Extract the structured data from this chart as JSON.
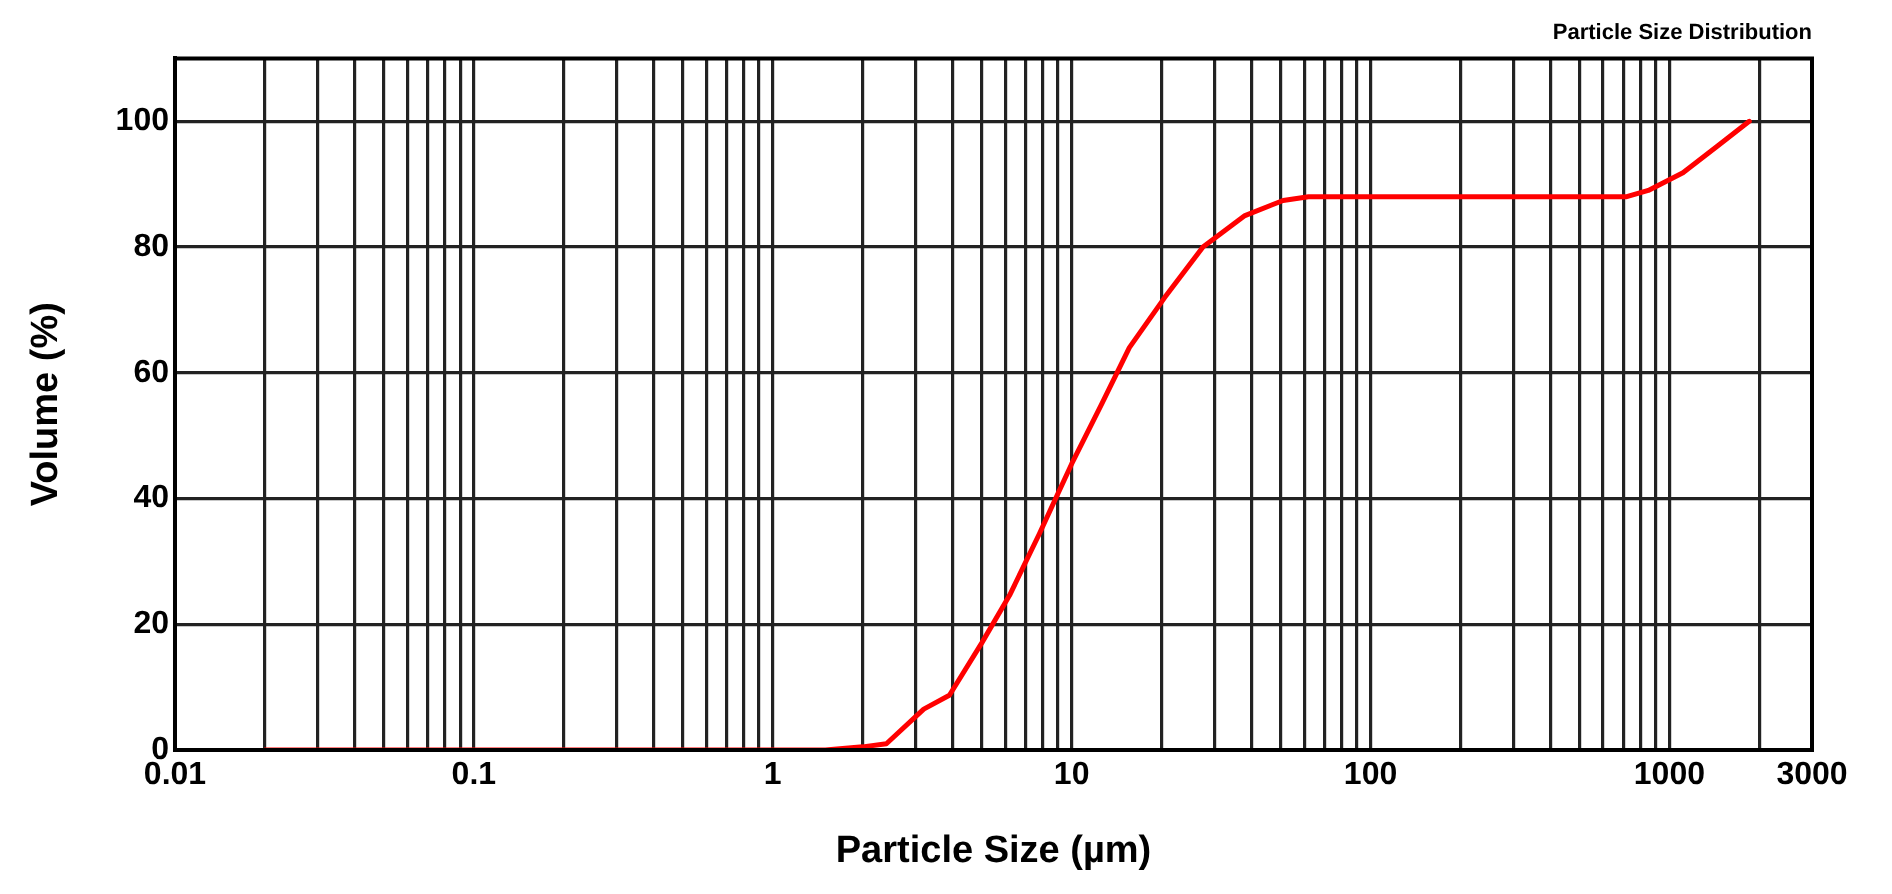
{
  "chart_data": {
    "type": "line",
    "title": "Particle Size Distribution",
    "xlabel": "Particle Size (µm)",
    "ylabel": "Volume (%)",
    "log": "x",
    "grid": true,
    "marker": "none",
    "legend": false,
    "xlim": [
      0.01,
      3000
    ],
    "ylim": [
      0,
      110
    ],
    "xticks": [
      0.01,
      {
        "value": 0.02,
        "label": null
      },
      {
        "value": 0.03,
        "label": null
      },
      {
        "value": 0.04,
        "label": null
      },
      {
        "value": 0.05,
        "label": null
      },
      {
        "value": 0.06,
        "label": null
      },
      {
        "value": 0.07,
        "label": null
      },
      {
        "value": 0.08,
        "label": null
      },
      {
        "value": 0.09,
        "label": null
      },
      0.1,
      {
        "value": 0.2,
        "label": null
      },
      {
        "value": 0.3,
        "label": null
      },
      {
        "value": 0.4,
        "label": null
      },
      {
        "value": 0.5,
        "label": null
      },
      {
        "value": 0.6,
        "label": null
      },
      {
        "value": 0.7,
        "label": null
      },
      {
        "value": 0.8,
        "label": null
      },
      {
        "value": 0.9,
        "label": null
      },
      1,
      {
        "value": 2,
        "label": null
      },
      {
        "value": 3,
        "label": null
      },
      {
        "value": 4,
        "label": null
      },
      {
        "value": 5,
        "label": null
      },
      {
        "value": 6,
        "label": null
      },
      {
        "value": 7,
        "label": null
      },
      {
        "value": 8,
        "label": null
      },
      {
        "value": 9,
        "label": null
      },
      10,
      {
        "value": 20,
        "label": null
      },
      {
        "value": 30,
        "label": null
      },
      {
        "value": 40,
        "label": null
      },
      {
        "value": 50,
        "label": null
      },
      {
        "value": 60,
        "label": null
      },
      {
        "value": 70,
        "label": null
      },
      {
        "value": 80,
        "label": null
      },
      {
        "value": 90,
        "label": null
      },
      100,
      {
        "value": 200,
        "label": null
      },
      {
        "value": 300,
        "label": null
      },
      {
        "value": 400,
        "label": null
      },
      {
        "value": 500,
        "label": null
      },
      {
        "value": 600,
        "label": null
      },
      {
        "value": 700,
        "label": null
      },
      {
        "value": 800,
        "label": null
      },
      {
        "value": 900,
        "label": null
      },
      1000,
      {
        "value": 2000,
        "label": null
      },
      3000
    ],
    "yticks": [
      0,
      20,
      40,
      60,
      80,
      100
    ],
    "series": [
      {
        "color": "#ff0000",
        "x": [
          0.02,
          0.1,
          1,
          1.5,
          2,
          2.4,
          3.2,
          3.9,
          5,
          6.2,
          7.8,
          10,
          12.6,
          15.6,
          20.5,
          27.5,
          38,
          51,
          62,
          100,
          300,
          720,
          850,
          1110,
          1460,
          1850
        ],
        "values": [
          0,
          0,
          0,
          0,
          0.5,
          1,
          6.5,
          8.7,
          17,
          24.6,
          34.4,
          45.5,
          55,
          64,
          72,
          80,
          85,
          87.4,
          88,
          88,
          88,
          88,
          89,
          91.8,
          96.2,
          100
        ]
      }
    ]
  }
}
